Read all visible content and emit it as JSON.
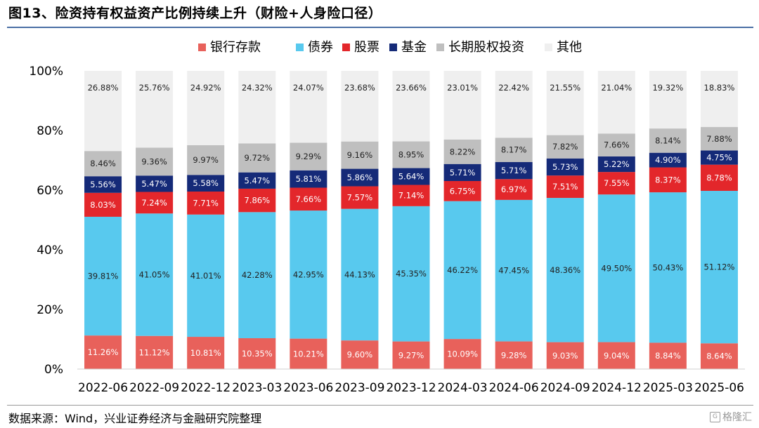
{
  "figure": {
    "title": "图13、险资持有权益资产比例持续上升（财险+人身险口径）",
    "source": "数据来源：Wind，兴业证券经济与金融研究院整理",
    "watermark": "格隆汇"
  },
  "chart_data": {
    "type": "bar",
    "stacked": true,
    "categories": [
      "2022-06",
      "2022-09",
      "2022-12",
      "2023-03",
      "2023-06",
      "2023-09",
      "2023-12",
      "2024-03",
      "2024-06",
      "2024-09",
      "2024-12",
      "2025-03",
      "2025-06"
    ],
    "ylim": [
      0,
      100
    ],
    "y_ticks": [
      "0%",
      "20%",
      "40%",
      "60%",
      "80%",
      "100%"
    ],
    "legend_position": "top",
    "grid": false,
    "series": [
      {
        "name": "银行存款",
        "color": "#e8615b",
        "label_color": "#ffffff",
        "values": [
          11.26,
          11.12,
          10.81,
          10.35,
          10.21,
          9.6,
          9.27,
          10.09,
          9.28,
          9.03,
          9.04,
          8.84,
          8.64
        ],
        "labels": [
          "11.26%",
          "11.12%",
          "10.81%",
          "10.35%",
          "10.21%",
          "9.60%",
          "9.27%",
          "10.09%",
          "9.28%",
          "9.03%",
          "9.04%",
          "8.84%",
          "8.64%"
        ]
      },
      {
        "name": "债券",
        "color": "#58c9ee",
        "label_color": "#222222",
        "values": [
          39.81,
          41.05,
          41.01,
          42.28,
          42.95,
          44.13,
          45.35,
          46.22,
          47.45,
          48.36,
          49.5,
          50.43,
          51.12
        ],
        "labels": [
          "39.81%",
          "41.05%",
          "41.01%",
          "42.28%",
          "42.95%",
          "44.13%",
          "45.35%",
          "46.22%",
          "47.45%",
          "48.36%",
          "49.50%",
          "50.43%",
          "51.12%"
        ]
      },
      {
        "name": "股票",
        "color": "#e3272b",
        "label_color": "#ffffff",
        "values": [
          8.03,
          7.24,
          7.71,
          7.86,
          7.66,
          7.57,
          7.14,
          6.75,
          6.97,
          7.51,
          7.55,
          8.37,
          8.78
        ],
        "labels": [
          "8.03%",
          "7.24%",
          "7.71%",
          "7.86%",
          "7.66%",
          "7.57%",
          "7.14%",
          "6.75%",
          "6.97%",
          "7.51%",
          "7.55%",
          "8.37%",
          "8.78%"
        ]
      },
      {
        "name": "基金",
        "color": "#152a78",
        "label_color": "#ffffff",
        "values": [
          5.56,
          5.47,
          5.58,
          5.47,
          5.81,
          5.86,
          5.64,
          5.71,
          5.71,
          5.73,
          5.22,
          4.9,
          4.75
        ],
        "labels": [
          "5.56%",
          "5.47%",
          "5.58%",
          "5.47%",
          "5.81%",
          "5.86%",
          "5.64%",
          "5.71%",
          "5.71%",
          "5.73%",
          "5.22%",
          "4.90%",
          "4.75%"
        ]
      },
      {
        "name": "长期股权投资",
        "color": "#bfbfbf",
        "label_color": "#222222",
        "values": [
          8.46,
          9.36,
          9.97,
          9.72,
          9.29,
          9.16,
          8.95,
          8.22,
          8.17,
          7.82,
          7.66,
          8.14,
          7.88
        ],
        "labels": [
          "8.46%",
          "9.36%",
          "9.97%",
          "9.72%",
          "9.29%",
          "9.16%",
          "8.95%",
          "8.22%",
          "8.17%",
          "7.82%",
          "7.66%",
          "8.14%",
          "7.88%"
        ]
      },
      {
        "name": "其他",
        "color": "#efefef",
        "label_color": "#222222",
        "values": [
          26.88,
          25.76,
          24.92,
          24.32,
          24.07,
          23.68,
          23.66,
          23.01,
          22.42,
          21.55,
          21.04,
          19.32,
          18.83
        ],
        "labels": [
          "26.88%",
          "25.76%",
          "24.92%",
          "24.32%",
          "24.07%",
          "23.68%",
          "23.66%",
          "23.01%",
          "22.42%",
          "21.55%",
          "21.04%",
          "19.32%",
          "18.83%"
        ]
      }
    ]
  }
}
